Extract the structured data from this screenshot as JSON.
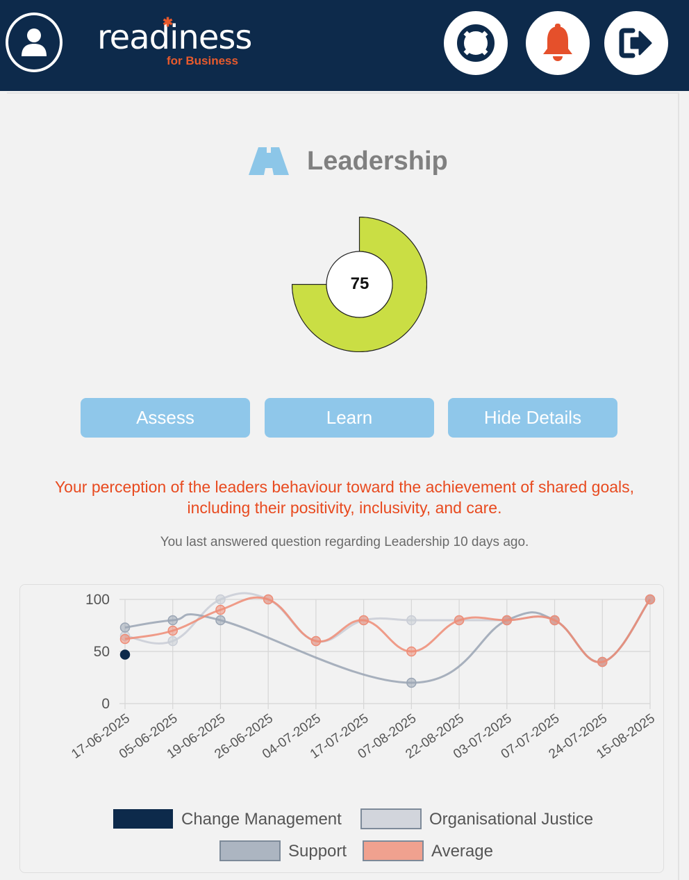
{
  "header": {
    "brand_name": "readiness",
    "brand_tagline": "for Business",
    "icons": [
      "user-icon",
      "life-ring-icon",
      "bell-icon",
      "logout-icon"
    ],
    "colors": {
      "bar": "#0d2a4b",
      "accent": "#e85a2c"
    }
  },
  "topic": {
    "icon": "road-icon",
    "title": "Leadership",
    "score": "75",
    "score_value": 75,
    "gauge_color": "#cade44"
  },
  "actions": {
    "assess_label": "Assess",
    "learn_label": "Learn",
    "hide_label": "Hide Details"
  },
  "description": "Your perception of the leaders behaviour toward the achievement of shared goals, including their positivity, inclusivity, and care.",
  "last_answered": "You last answered question regarding Leadership 10 days ago.",
  "chart_data": {
    "type": "line",
    "title": "",
    "xlabel": "",
    "ylabel": "",
    "ylim": [
      0,
      100
    ],
    "yticks": [
      0,
      50,
      100
    ],
    "grid": true,
    "legend_position": "bottom",
    "categories": [
      "17-06-2025",
      "05-06-2025",
      "19-06-2025",
      "26-06-2025",
      "04-07-2025",
      "17-07-2025",
      "07-08-2025",
      "22-08-2025",
      "03-07-2025",
      "07-07-2025",
      "24-07-2025",
      "15-08-2025"
    ],
    "series": [
      {
        "name": "Change Management",
        "color": "#0d2a4b",
        "values": [
          47,
          null,
          null,
          null,
          null,
          null,
          null,
          null,
          null,
          null,
          null,
          null
        ]
      },
      {
        "name": "Organisational Justice",
        "color": "#c9cdd6",
        "values": [
          65,
          60,
          100,
          100,
          60,
          80,
          80,
          80,
          80,
          80,
          40,
          100
        ]
      },
      {
        "name": "Support",
        "color": "#9aa5b4",
        "values": [
          73,
          80,
          80,
          null,
          null,
          null,
          20,
          null,
          80,
          80,
          40,
          100
        ]
      },
      {
        "name": "Average",
        "color": "#ef8c76",
        "values": [
          62,
          70,
          90,
          100,
          60,
          80,
          50,
          80,
          80,
          80,
          40,
          100
        ]
      }
    ]
  }
}
